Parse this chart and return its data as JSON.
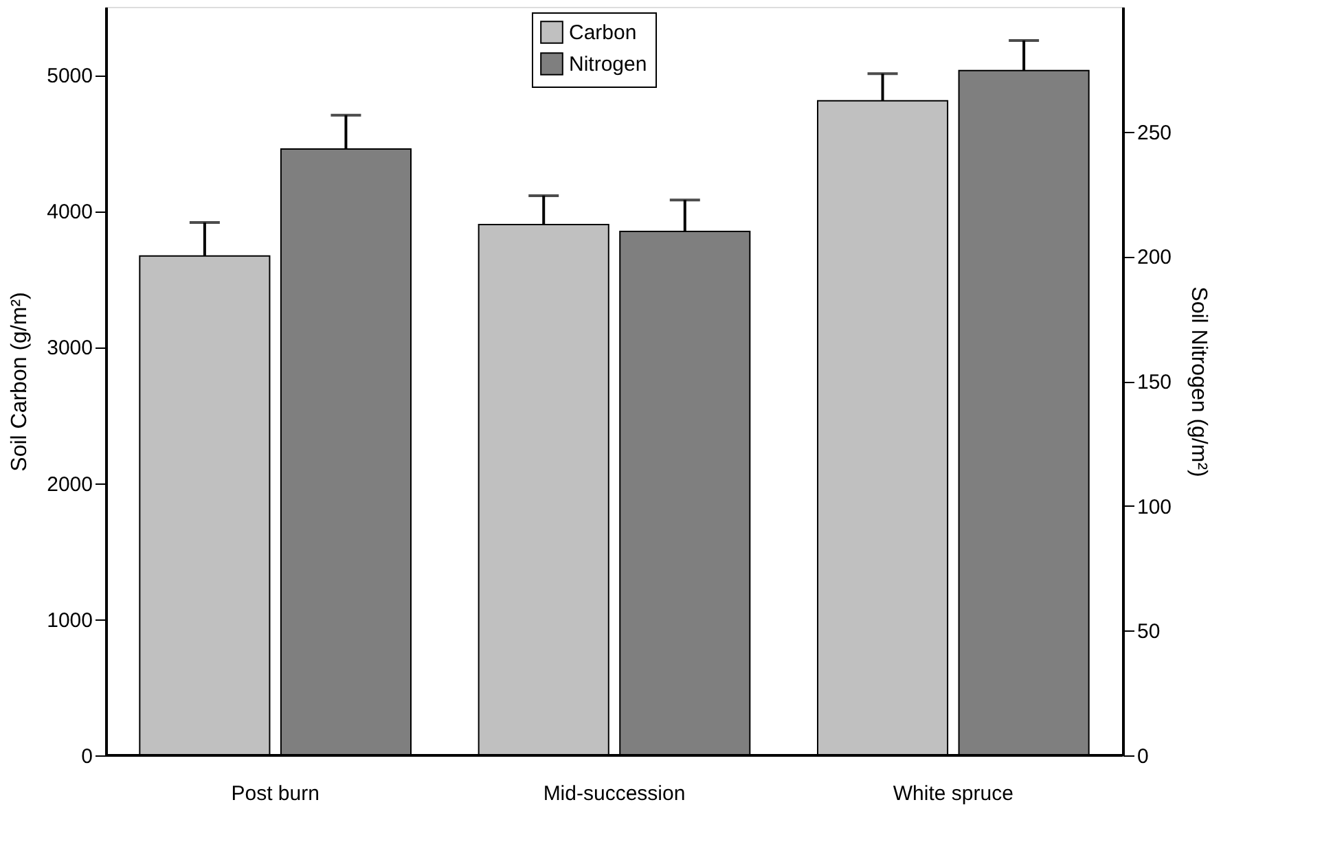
{
  "chart_data": {
    "type": "bar",
    "categories": [
      "Post burn",
      "Mid-succession",
      "White spruce"
    ],
    "ylabel": "Soil Carbon (g/m²)",
    "y2label": "Soil Nitrogen (g/m²)",
    "series": [
      {
        "name": "Carbon",
        "color": "#c0c0c0",
        "values": [
          3670,
          3900,
          4810
        ],
        "errors": [
          245,
          213,
          199
        ]
      },
      {
        "name": "Nitrogen",
        "color": "#7f7f7f",
        "axis": "y2",
        "values": [
          243,
          210,
          274.5
        ],
        "errors": [
          13.6,
          12.6,
          12
        ]
      }
    ],
    "ylim": [
      0,
      5500
    ],
    "yticks": [
      0,
      1000,
      2000,
      3000,
      4000,
      5000
    ],
    "y2lim": [
      0,
      300
    ],
    "y2ticks": [
      0,
      50,
      100,
      150,
      200,
      250
    ],
    "grid": false,
    "legend": "top"
  }
}
